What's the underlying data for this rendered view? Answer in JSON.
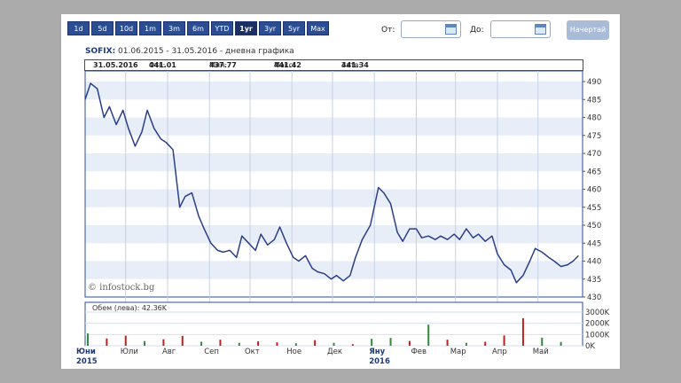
{
  "range_buttons": [
    "1d",
    "5d",
    "10d",
    "1m",
    "3m",
    "6m",
    "YTD",
    "1yr",
    "3yr",
    "5yr",
    "Max"
  ],
  "active_range": "1yr",
  "from_label": "От:",
  "to_label": "До:",
  "draw_button": "Начертай",
  "title": {
    "symbol": "SOFIX:",
    "text": " 01.06.2015 - 31.05.2016 - дневна графика"
  },
  "info": {
    "date": "31.05.2016",
    "open_label": "Отв:",
    "open": "441.01",
    "low_label": "Мин:",
    "low": "437.77",
    "high_label": "Макс:",
    "high": "441.42",
    "close_label": "Затв:",
    "close": "441.34"
  },
  "watermark": "© infostock.bg",
  "volume_label": "Обем (лева): 42.36K",
  "colors": {
    "line": "#2a3f8a",
    "vol_up": "#2e8b3a",
    "vol_down": "#c0201a",
    "band": "#e8eef8",
    "accent": "#2a4d93"
  },
  "chart_data": {
    "type": "line",
    "series": [
      {
        "x": [
          "2015-06-01",
          "2015-06-05",
          "2015-06-10",
          "2015-06-15",
          "2015-06-19",
          "2015-06-24",
          "2015-06-29",
          "2015-07-03",
          "2015-07-08",
          "2015-07-13",
          "2015-07-17",
          "2015-07-22",
          "2015-07-27",
          "2015-07-31",
          "2015-08-05",
          "2015-08-10",
          "2015-08-14",
          "2015-08-19",
          "2015-08-24",
          "2015-08-28",
          "2015-09-02",
          "2015-09-07",
          "2015-09-11",
          "2015-09-16",
          "2015-09-21",
          "2015-09-25",
          "2015-09-30",
          "2015-10-05",
          "2015-10-09",
          "2015-10-14",
          "2015-10-19",
          "2015-10-23",
          "2015-10-28",
          "2015-11-02",
          "2015-11-06",
          "2015-11-11",
          "2015-11-16",
          "2015-11-20",
          "2015-11-25",
          "2015-11-30",
          "2015-12-04",
          "2015-12-09",
          "2015-12-14",
          "2015-12-18",
          "2015-12-23",
          "2015-12-29",
          "2016-01-04",
          "2016-01-08",
          "2016-01-13",
          "2016-01-18",
          "2016-01-22",
          "2016-01-27",
          "2016-02-01",
          "2016-02-05",
          "2016-02-10",
          "2016-02-15",
          "2016-02-19",
          "2016-02-24",
          "2016-02-29",
          "2016-03-04",
          "2016-03-09",
          "2016-03-14",
          "2016-03-18",
          "2016-03-23",
          "2016-03-28",
          "2016-04-01",
          "2016-04-06",
          "2016-04-11",
          "2016-04-15",
          "2016-04-20",
          "2016-04-25",
          "2016-04-29",
          "2016-05-04",
          "2016-05-09",
          "2016-05-13",
          "2016-05-18",
          "2016-05-23",
          "2016-05-27",
          "2016-05-31"
        ],
        "y": [
          485.0,
          489.5,
          488.0,
          480.0,
          483.0,
          478.0,
          482.0,
          477.0,
          472.0,
          476.0,
          482.0,
          477.0,
          474.0,
          473.0,
          471.0,
          455.0,
          458.0,
          459.0,
          452.5,
          449.0,
          445.0,
          443.0,
          442.5,
          443.0,
          441.0,
          447.0,
          445.0,
          443.0,
          447.5,
          444.5,
          446.0,
          449.5,
          445.0,
          441.0,
          440.0,
          441.5,
          438.0,
          437.0,
          436.5,
          435.0,
          436.0,
          434.5,
          436.0,
          441.0,
          446.0,
          450.0,
          460.5,
          459.0,
          456.0,
          448.0,
          445.5,
          449.0,
          449.0,
          446.5,
          447.0,
          446.0,
          447.0,
          446.0,
          447.5,
          446.0,
          449.0,
          446.5,
          447.5,
          445.5,
          447.0,
          442.0,
          439.0,
          437.5,
          434.0,
          436.0,
          440.0,
          443.5,
          442.5,
          441.0,
          440.0,
          438.5,
          439.0,
          440.0,
          441.5
        ]
      }
    ],
    "volume_x": [
      "2015-06-03",
      "2015-06-17",
      "2015-07-01",
      "2015-07-15",
      "2015-07-29",
      "2015-08-12",
      "2015-08-26",
      "2015-09-09",
      "2015-09-23",
      "2015-10-07",
      "2015-10-21",
      "2015-11-04",
      "2015-11-18",
      "2015-12-02",
      "2015-12-16",
      "2015-12-30",
      "2016-01-13",
      "2016-01-27",
      "2016-02-10",
      "2016-02-24",
      "2016-03-09",
      "2016-03-23",
      "2016-04-06",
      "2016-04-20",
      "2016-05-04",
      "2016-05-18"
    ],
    "volume_y": [
      1100,
      650,
      900,
      420,
      580,
      880,
      360,
      540,
      260,
      400,
      300,
      220,
      500,
      260,
      140,
      620,
      700,
      430,
      1880,
      540,
      260,
      360,
      920,
      2450,
      720,
      340
    ],
    "volume_dir": [
      "up",
      "down",
      "down",
      "up",
      "down",
      "down",
      "up",
      "down",
      "up",
      "down",
      "down",
      "up",
      "down",
      "up",
      "down",
      "up",
      "up",
      "down",
      "up",
      "down",
      "up",
      "down",
      "down",
      "down",
      "up",
      "up"
    ],
    "y_ticks": [
      "490",
      "485",
      "480",
      "475",
      "470",
      "465",
      "460",
      "455",
      "450",
      "445",
      "440",
      "435",
      "430"
    ],
    "ylim": [
      430,
      490
    ],
    "vol_ticks": [
      "3000K",
      "2000K",
      "1000K",
      "0K"
    ],
    "vol_ylim": [
      0,
      3000
    ],
    "month_labels": [
      "Юни",
      "Юли",
      "Авг",
      "Сеп",
      "Окт",
      "Ное",
      "Дек",
      "Яну",
      "Фев",
      "Мар",
      "Апр",
      "Май"
    ],
    "month_starts": [
      "2015-06-01",
      "2015-07-01",
      "2015-08-01",
      "2015-09-01",
      "2015-10-01",
      "2015-11-01",
      "2015-12-01",
      "2016-01-01",
      "2016-02-01",
      "2016-03-01",
      "2016-04-01",
      "2016-05-01"
    ],
    "year_labels": [
      "2015",
      "2016"
    ],
    "xlim": [
      "2015-06-01",
      "2016-06-03"
    ],
    "grid": true
  }
}
